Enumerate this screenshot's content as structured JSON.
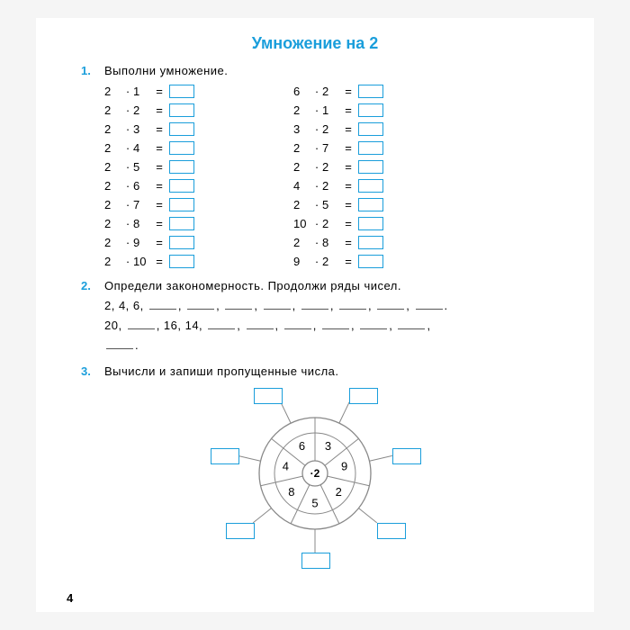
{
  "title": "Умножение на 2",
  "task1": {
    "num": "1.",
    "text": "Выполни умножение.",
    "left": [
      [
        "2",
        "1"
      ],
      [
        "2",
        "2"
      ],
      [
        "2",
        "3"
      ],
      [
        "2",
        "4"
      ],
      [
        "2",
        "5"
      ],
      [
        "2",
        "6"
      ],
      [
        "2",
        "7"
      ],
      [
        "2",
        "8"
      ],
      [
        "2",
        "9"
      ],
      [
        "2",
        "10"
      ]
    ],
    "right": [
      [
        "6",
        "2"
      ],
      [
        "2",
        "1"
      ],
      [
        "3",
        "2"
      ],
      [
        "2",
        "7"
      ],
      [
        "2",
        "2"
      ],
      [
        "4",
        "2"
      ],
      [
        "2",
        "5"
      ],
      [
        "10",
        "2"
      ],
      [
        "2",
        "8"
      ],
      [
        "9",
        "2"
      ]
    ]
  },
  "task2": {
    "num": "2.",
    "text": "Определи закономерность. Продолжи ряды чисел.",
    "seq1_start": [
      "2",
      "4",
      "6"
    ],
    "seq1_blanks": 8,
    "seq2_parts": [
      "20",
      "",
      "16",
      "14"
    ],
    "seq2_blanks_after": 6
  },
  "task3": {
    "num": "3.",
    "text": "Вычисли и запиши пропущенные числа.",
    "center": "·2",
    "sectors": [
      "3",
      "9",
      "2",
      "5",
      "8",
      "4",
      "6"
    ],
    "colors": {
      "ring": "#888",
      "box": "#1a9edb"
    }
  },
  "pagenum": "4"
}
